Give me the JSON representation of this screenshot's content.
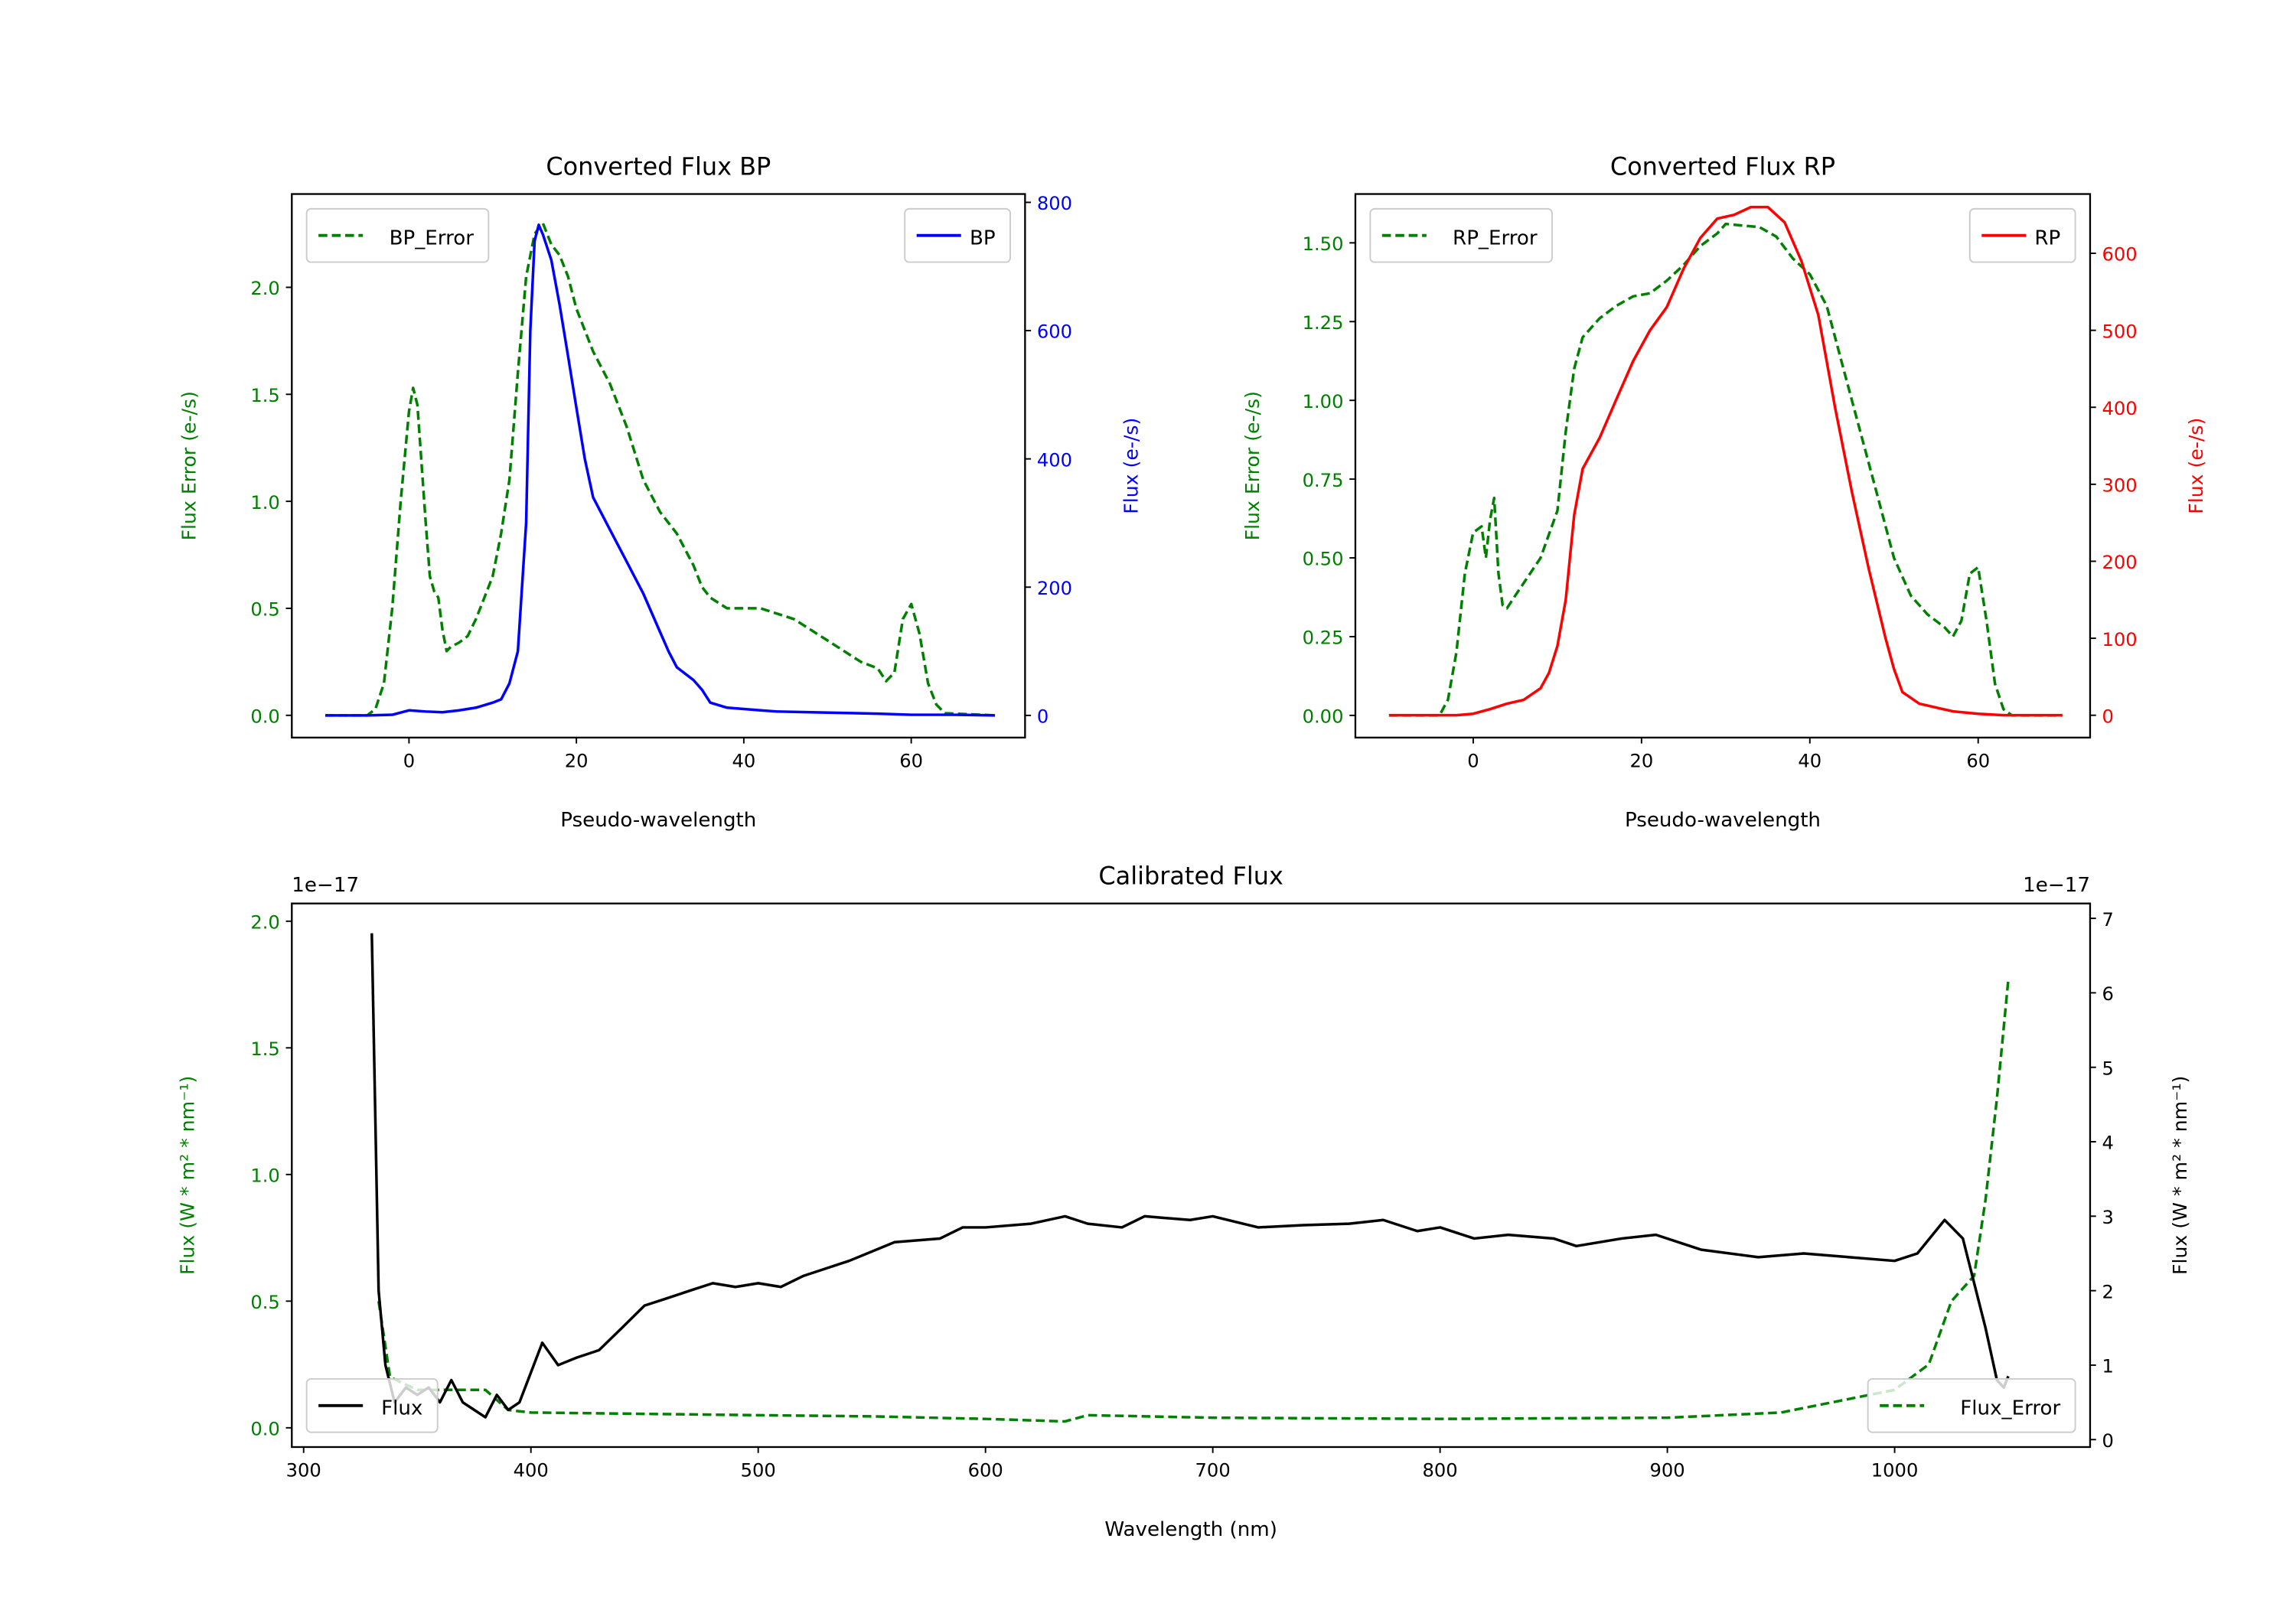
{
  "colors": {
    "bp": "#0000ff",
    "rp": "#ff0000",
    "error": "#008000",
    "flux": "#000000"
  },
  "chart_data": [
    {
      "id": "bp",
      "type": "line",
      "title": "Converted Flux BP",
      "xlabel": "Pseudo-wavelength",
      "ylabel_left": "Flux Error (e-/s)",
      "ylabel_right": "Flux (e-/s)",
      "xlim": [
        -14,
        73.6
      ],
      "ylim_left": [
        -0.104,
        2.436
      ],
      "ylim_right": [
        -34.6,
        813
      ],
      "xticks": [
        0,
        20,
        40,
        60
      ],
      "yticks_left": [
        "0.0",
        "0.5",
        "1.0",
        "1.5",
        "2.0"
      ],
      "yticks_right": [
        "0",
        "200",
        "400",
        "600",
        "800"
      ],
      "legend": [
        {
          "label": "BP_Error",
          "position": "top-left"
        },
        {
          "label": "BP",
          "position": "top-right"
        }
      ],
      "series": [
        {
          "name": "BP_Error",
          "axis": "left",
          "style": "dashed",
          "color": "#008000",
          "x": [
            -10,
            -5,
            -4,
            -3,
            -2,
            -1,
            0,
            0.5,
            1,
            2,
            2.5,
            3,
            3.5,
            4,
            4.5,
            5,
            6,
            7,
            8,
            9,
            10,
            11,
            12,
            13,
            14,
            15,
            16,
            17,
            18,
            19,
            20,
            22,
            24,
            26,
            28,
            30,
            32,
            34,
            35,
            36,
            38,
            42,
            46,
            50,
            54,
            56,
            57,
            58,
            59,
            60,
            61,
            62,
            63,
            64,
            70
          ],
          "y": [
            0,
            0,
            0.03,
            0.15,
            0.5,
            1.0,
            1.42,
            1.53,
            1.45,
            0.9,
            0.65,
            0.58,
            0.55,
            0.4,
            0.3,
            0.32,
            0.34,
            0.37,
            0.45,
            0.55,
            0.65,
            0.85,
            1.1,
            1.6,
            2.05,
            2.25,
            2.3,
            2.2,
            2.15,
            2.05,
            1.9,
            1.7,
            1.55,
            1.35,
            1.1,
            0.95,
            0.85,
            0.7,
            0.6,
            0.55,
            0.5,
            0.5,
            0.45,
            0.35,
            0.25,
            0.22,
            0.16,
            0.2,
            0.45,
            0.52,
            0.38,
            0.15,
            0.05,
            0.01,
            0
          ]
        },
        {
          "name": "BP",
          "axis": "right",
          "style": "solid",
          "color": "#0000ff",
          "x": [
            -10,
            -5,
            -2,
            0,
            2,
            4,
            6,
            8,
            10,
            11,
            12,
            13,
            14,
            14.5,
            15,
            15.5,
            16,
            17,
            18,
            19,
            20,
            21,
            22,
            24,
            26,
            28,
            30,
            31,
            32,
            34,
            35,
            36,
            38,
            40,
            42,
            44,
            48,
            55,
            60,
            65,
            70
          ],
          "y": [
            0,
            0,
            1,
            8,
            6,
            5,
            8,
            12,
            20,
            25,
            50,
            100,
            300,
            600,
            740,
            765,
            750,
            710,
            640,
            560,
            480,
            400,
            340,
            290,
            240,
            190,
            130,
            100,
            75,
            55,
            40,
            20,
            12,
            10,
            8,
            6,
            5,
            3,
            1,
            1,
            0
          ]
        }
      ]
    },
    {
      "id": "rp",
      "type": "line",
      "title": "Converted Flux RP",
      "xlabel": "Pseudo-wavelength",
      "ylabel_left": "Flux Error (e-/s)",
      "ylabel_right": "Flux (e-/s)",
      "xlim": [
        -14,
        73.3
      ],
      "ylim_left": [
        -0.0705,
        1.655
      ],
      "ylim_right": [
        -29,
        677
      ],
      "xticks": [
        0,
        20,
        40,
        60
      ],
      "yticks_left": [
        "0.00",
        "0.25",
        "0.50",
        "0.75",
        "1.00",
        "1.25",
        "1.50"
      ],
      "yticks_right": [
        "0",
        "100",
        "200",
        "300",
        "400",
        "500",
        "600"
      ],
      "legend": [
        {
          "label": "RP_Error",
          "position": "top-left"
        },
        {
          "label": "RP",
          "position": "top-right"
        }
      ],
      "series": [
        {
          "name": "RP_Error",
          "axis": "left",
          "style": "dashed",
          "color": "#008000",
          "x": [
            -10,
            -4,
            -3,
            -2,
            -1,
            0,
            1,
            1.5,
            2,
            2.5,
            3,
            3.5,
            4,
            5,
            6,
            8,
            10,
            11,
            12,
            13,
            15,
            17,
            19,
            21,
            23,
            25,
            27,
            29,
            30,
            32,
            34,
            36,
            38,
            40,
            42,
            44,
            46,
            48,
            50,
            52,
            54,
            55,
            56,
            57,
            58,
            59,
            60,
            61,
            62,
            63,
            64,
            70
          ],
          "y": [
            0,
            0,
            0.05,
            0.2,
            0.45,
            0.58,
            0.6,
            0.5,
            0.62,
            0.69,
            0.45,
            0.35,
            0.34,
            0.38,
            0.42,
            0.5,
            0.65,
            0.9,
            1.1,
            1.2,
            1.26,
            1.3,
            1.33,
            1.34,
            1.38,
            1.43,
            1.49,
            1.53,
            1.56,
            1.555,
            1.55,
            1.52,
            1.45,
            1.4,
            1.3,
            1.1,
            0.9,
            0.7,
            0.5,
            0.38,
            0.32,
            0.3,
            0.28,
            0.25,
            0.3,
            0.45,
            0.47,
            0.3,
            0.1,
            0.02,
            0,
            0
          ]
        },
        {
          "name": "RP",
          "axis": "right",
          "style": "solid",
          "color": "#ff0000",
          "x": [
            -10,
            -2,
            0,
            2,
            4,
            6,
            8,
            9,
            10,
            11,
            12,
            13,
            15,
            17,
            19,
            21,
            23,
            25,
            27,
            29,
            31,
            33,
            35,
            37,
            39,
            41,
            43,
            45,
            47,
            49,
            50,
            51,
            53,
            57,
            60,
            63,
            70
          ],
          "y": [
            0,
            0,
            2,
            8,
            15,
            20,
            35,
            55,
            90,
            150,
            260,
            320,
            360,
            410,
            460,
            500,
            530,
            580,
            620,
            645,
            650,
            660,
            660,
            640,
            590,
            520,
            400,
            290,
            190,
            100,
            60,
            30,
            15,
            5,
            2,
            0,
            0
          ]
        }
      ]
    },
    {
      "id": "cal",
      "type": "line",
      "title": "Calibrated Flux",
      "xlabel": "Wavelength (nm)",
      "ylabel_left": "Flux (W * m² * nm⁻¹)",
      "ylabel_right": "Flux (W * m² * nm⁻¹)",
      "offset_left": "1e−17",
      "offset_right": "1e−17",
      "xlim": [
        294.8,
        1086
      ],
      "ylim_left": [
        -0.076,
        2.07
      ],
      "ylim_right": [
        -0.1,
        7.2
      ],
      "xticks": [
        300,
        400,
        500,
        600,
        700,
        800,
        900,
        1000
      ],
      "yticks_left": [
        "0.0",
        "0.5",
        "1.0",
        "1.5",
        "2.0"
      ],
      "yticks_right": [
        "0",
        "1",
        "2",
        "3",
        "4",
        "5",
        "6",
        "7"
      ],
      "legend": [
        {
          "label": "Flux",
          "position": "lower-left"
        },
        {
          "label": "Flux_Error",
          "position": "lower-right"
        }
      ],
      "series": [
        {
          "name": "Flux_Error",
          "axis": "left",
          "style": "dashed",
          "color": "#008000",
          "x": [
            333,
            338,
            350,
            380,
            390,
            400,
            450,
            500,
            550,
            600,
            635,
            645,
            700,
            800,
            900,
            950,
            1000,
            1015,
            1025,
            1035,
            1040,
            1045,
            1050
          ],
          "y": [
            0.5,
            0.2,
            0.15,
            0.15,
            0.07,
            0.06,
            0.055,
            0.05,
            0.045,
            0.035,
            0.025,
            0.05,
            0.04,
            0.035,
            0.04,
            0.06,
            0.15,
            0.25,
            0.5,
            0.6,
            0.9,
            1.3,
            1.77
          ]
        },
        {
          "name": "Flux",
          "axis": "right",
          "style": "solid",
          "color": "#000000",
          "x": [
            330,
            333,
            336,
            340,
            345,
            350,
            355,
            360,
            365,
            370,
            375,
            380,
            385,
            390,
            395,
            400,
            405,
            412,
            420,
            430,
            440,
            450,
            460,
            470,
            480,
            490,
            500,
            510,
            520,
            540,
            560,
            580,
            590,
            600,
            620,
            635,
            645,
            660,
            670,
            690,
            700,
            720,
            740,
            760,
            775,
            790,
            800,
            815,
            830,
            850,
            860,
            880,
            895,
            915,
            940,
            960,
            980,
            1000,
            1010,
            1022,
            1030,
            1040,
            1045,
            1048,
            1050
          ],
          "y": [
            6.8,
            2,
            1,
            0.5,
            0.7,
            0.6,
            0.7,
            0.5,
            0.8,
            0.5,
            0.4,
            0.3,
            0.6,
            0.4,
            0.5,
            0.9,
            1.3,
            1.0,
            1.1,
            1.2,
            1.5,
            1.8,
            1.9,
            2.0,
            2.1,
            2.05,
            2.1,
            2.05,
            2.2,
            2.4,
            2.65,
            2.7,
            2.85,
            2.85,
            2.9,
            3.0,
            2.9,
            2.85,
            3.0,
            2.95,
            3.0,
            2.85,
            2.88,
            2.9,
            2.95,
            2.8,
            2.85,
            2.7,
            2.75,
            2.7,
            2.6,
            2.7,
            2.75,
            2.55,
            2.45,
            2.5,
            2.45,
            2.4,
            2.5,
            2.95,
            2.7,
            1.5,
            0.8,
            0.7,
            0.85
          ]
        }
      ]
    }
  ]
}
